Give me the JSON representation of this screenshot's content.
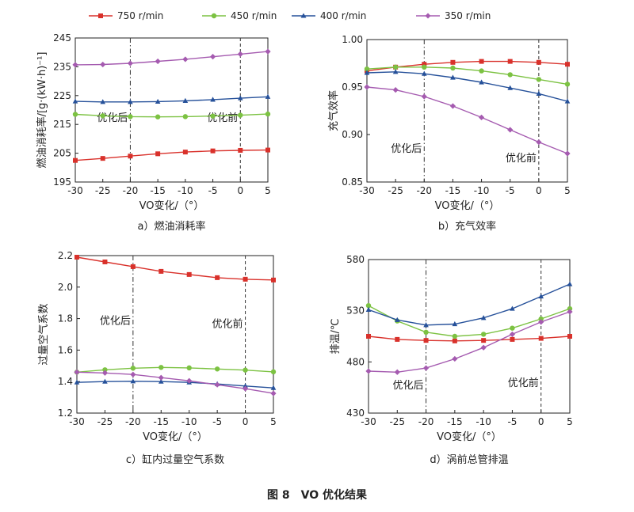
{
  "figure_caption": "图 8　VO 优化结果",
  "legend": [
    {
      "label": "750 r/min",
      "color": "#d9312b",
      "marker": "square"
    },
    {
      "label": "450 r/min",
      "color": "#7cc242",
      "marker": "circle"
    },
    {
      "label": "400 r/min",
      "color": "#26519a",
      "marker": "triangle"
    },
    {
      "label": "350 r/min",
      "color": "#a55bb0",
      "marker": "diamond"
    }
  ],
  "chart_data": [
    {
      "type": "line",
      "caption": "a）燃油消耗率",
      "xlabel": "VO变化/（°）",
      "ylabel": "燃油消耗率/[g·(kW·h)⁻¹]",
      "xlim": [
        -30,
        5
      ],
      "ylim": [
        195,
        245
      ],
      "xticks": [
        -30,
        -25,
        -20,
        -15,
        -10,
        -5,
        0,
        5
      ],
      "yticks": [
        195,
        205,
        215,
        225,
        235,
        245
      ],
      "grid": false,
      "annotations": [
        {
          "text": "优化后",
          "x": -20,
          "y": 217.5,
          "style": "dashdot"
        },
        {
          "text": "优化前",
          "x": 0,
          "y": 217.5,
          "style": "dashed"
        }
      ],
      "series": [
        {
          "name": "750 r/min",
          "x": [
            -30,
            -25,
            -20,
            -15,
            -10,
            -5,
            0,
            5
          ],
          "values": [
            202.5,
            203.2,
            204.0,
            204.8,
            205.4,
            205.8,
            206.0,
            206.1
          ]
        },
        {
          "name": "450 r/min",
          "x": [
            -30,
            -25,
            -20,
            -15,
            -10,
            -5,
            0,
            5
          ],
          "values": [
            218.5,
            218.0,
            217.7,
            217.6,
            217.7,
            217.9,
            218.2,
            218.6
          ]
        },
        {
          "name": "400 r/min",
          "x": [
            -30,
            -25,
            -20,
            -15,
            -10,
            -5,
            0,
            5
          ],
          "values": [
            223.0,
            222.8,
            222.8,
            222.9,
            223.2,
            223.6,
            224.1,
            224.6
          ]
        },
        {
          "name": "350 r/min",
          "x": [
            -30,
            -25,
            -20,
            -15,
            -10,
            -5,
            0,
            5
          ],
          "values": [
            235.7,
            235.8,
            236.2,
            236.9,
            237.6,
            238.5,
            239.4,
            240.3
          ]
        }
      ]
    },
    {
      "type": "line",
      "caption": "b）充气效率",
      "xlabel": "VO变化/（°）",
      "ylabel": "充气效率",
      "xlim": [
        -30,
        5
      ],
      "ylim": [
        0.85,
        1.0
      ],
      "xticks": [
        -30,
        -25,
        -20,
        -15,
        -10,
        -5,
        0,
        5
      ],
      "yticks": [
        0.85,
        0.9,
        0.95,
        1.0
      ],
      "ytick_labels": [
        "0.85",
        "0.90",
        "0.95",
        "1.00"
      ],
      "grid": false,
      "annotations": [
        {
          "text": "优化后",
          "x": -20,
          "y": 0.886,
          "style": "dashdot"
        },
        {
          "text": "优化前",
          "x": 0,
          "y": 0.876,
          "style": "dashed"
        }
      ],
      "series": [
        {
          "name": "750 r/min",
          "x": [
            -30,
            -25,
            -20,
            -15,
            -10,
            -5,
            0,
            5
          ],
          "values": [
            0.967,
            0.971,
            0.974,
            0.976,
            0.977,
            0.977,
            0.976,
            0.974
          ]
        },
        {
          "name": "450 r/min",
          "x": [
            -30,
            -25,
            -20,
            -15,
            -10,
            -5,
            0,
            5
          ],
          "values": [
            0.969,
            0.971,
            0.971,
            0.97,
            0.967,
            0.963,
            0.958,
            0.953
          ]
        },
        {
          "name": "400 r/min",
          "x": [
            -30,
            -25,
            -20,
            -15,
            -10,
            -5,
            0,
            5
          ],
          "values": [
            0.965,
            0.966,
            0.964,
            0.96,
            0.955,
            0.949,
            0.943,
            0.935
          ]
        },
        {
          "name": "350 r/min",
          "x": [
            -30,
            -25,
            -20,
            -15,
            -10,
            -5,
            0,
            5
          ],
          "values": [
            0.95,
            0.947,
            0.94,
            0.93,
            0.918,
            0.905,
            0.892,
            0.88
          ]
        }
      ]
    },
    {
      "type": "line",
      "caption": "c）缸内过量空气系数",
      "xlabel": "VO变化/（°）",
      "ylabel": "过量空气系数",
      "xlim": [
        -30,
        5
      ],
      "ylim": [
        1.2,
        2.2
      ],
      "xticks": [
        -30,
        -25,
        -20,
        -15,
        -10,
        -5,
        0,
        5
      ],
      "yticks": [
        1.2,
        1.4,
        1.6,
        1.8,
        2.0,
        2.2
      ],
      "ytick_labels": [
        "1.2",
        "1.4",
        "1.6",
        "1.8",
        "2.0",
        "2.2"
      ],
      "grid": false,
      "annotations": [
        {
          "text": "优化后",
          "x": -20,
          "y": 1.79,
          "style": "dashdot"
        },
        {
          "text": "优化前",
          "x": 0,
          "y": 1.77,
          "style": "dashed"
        }
      ],
      "series": [
        {
          "name": "750 r/min",
          "x": [
            -30,
            -25,
            -20,
            -15,
            -10,
            -5,
            0,
            5
          ],
          "values": [
            2.19,
            2.16,
            2.13,
            2.1,
            2.08,
            2.06,
            2.05,
            2.045
          ]
        },
        {
          "name": "450 r/min",
          "x": [
            -30,
            -25,
            -20,
            -15,
            -10,
            -5,
            0,
            5
          ],
          "values": [
            1.46,
            1.475,
            1.485,
            1.49,
            1.487,
            1.48,
            1.473,
            1.462
          ]
        },
        {
          "name": "400 r/min",
          "x": [
            -30,
            -25,
            -20,
            -15,
            -10,
            -5,
            0,
            5
          ],
          "values": [
            1.395,
            1.4,
            1.402,
            1.4,
            1.395,
            1.385,
            1.372,
            1.36
          ]
        },
        {
          "name": "350 r/min",
          "x": [
            -30,
            -25,
            -20,
            -15,
            -10,
            -5,
            0,
            5
          ],
          "values": [
            1.46,
            1.455,
            1.445,
            1.425,
            1.405,
            1.38,
            1.355,
            1.325
          ]
        }
      ]
    },
    {
      "type": "line",
      "caption": "d）涡前总管排温",
      "xlabel": "VO变化/（°）",
      "ylabel": "排温/℃",
      "xlim": [
        -30,
        5
      ],
      "ylim": [
        430,
        580
      ],
      "xticks": [
        -30,
        -25,
        -20,
        -15,
        -10,
        -5,
        0,
        5
      ],
      "yticks": [
        430,
        480,
        530,
        580
      ],
      "grid": false,
      "annotations": [
        {
          "text": "优化后",
          "x": -20,
          "y": 458,
          "style": "dashdot"
        },
        {
          "text": "优化前",
          "x": 0,
          "y": 460,
          "style": "dashed"
        }
      ],
      "series": [
        {
          "name": "750 r/min",
          "x": [
            -30,
            -25,
            -20,
            -15,
            -10,
            -5,
            0,
            5
          ],
          "values": [
            505,
            502,
            501,
            500.5,
            501,
            502,
            503,
            505
          ]
        },
        {
          "name": "450 r/min",
          "x": [
            -30,
            -25,
            -20,
            -15,
            -10,
            -5,
            0,
            5
          ],
          "values": [
            535,
            520,
            509,
            505,
            507,
            513,
            522,
            532
          ]
        },
        {
          "name": "400 r/min",
          "x": [
            -30,
            -25,
            -20,
            -15,
            -10,
            -5,
            0,
            5
          ],
          "values": [
            531,
            521,
            516,
            517,
            523,
            532,
            544,
            556
          ]
        },
        {
          "name": "350 r/min",
          "x": [
            -30,
            -25,
            -20,
            -15,
            -10,
            -5,
            0,
            5
          ],
          "values": [
            471,
            470,
            474,
            483,
            494,
            507,
            519,
            529
          ]
        }
      ]
    }
  ]
}
